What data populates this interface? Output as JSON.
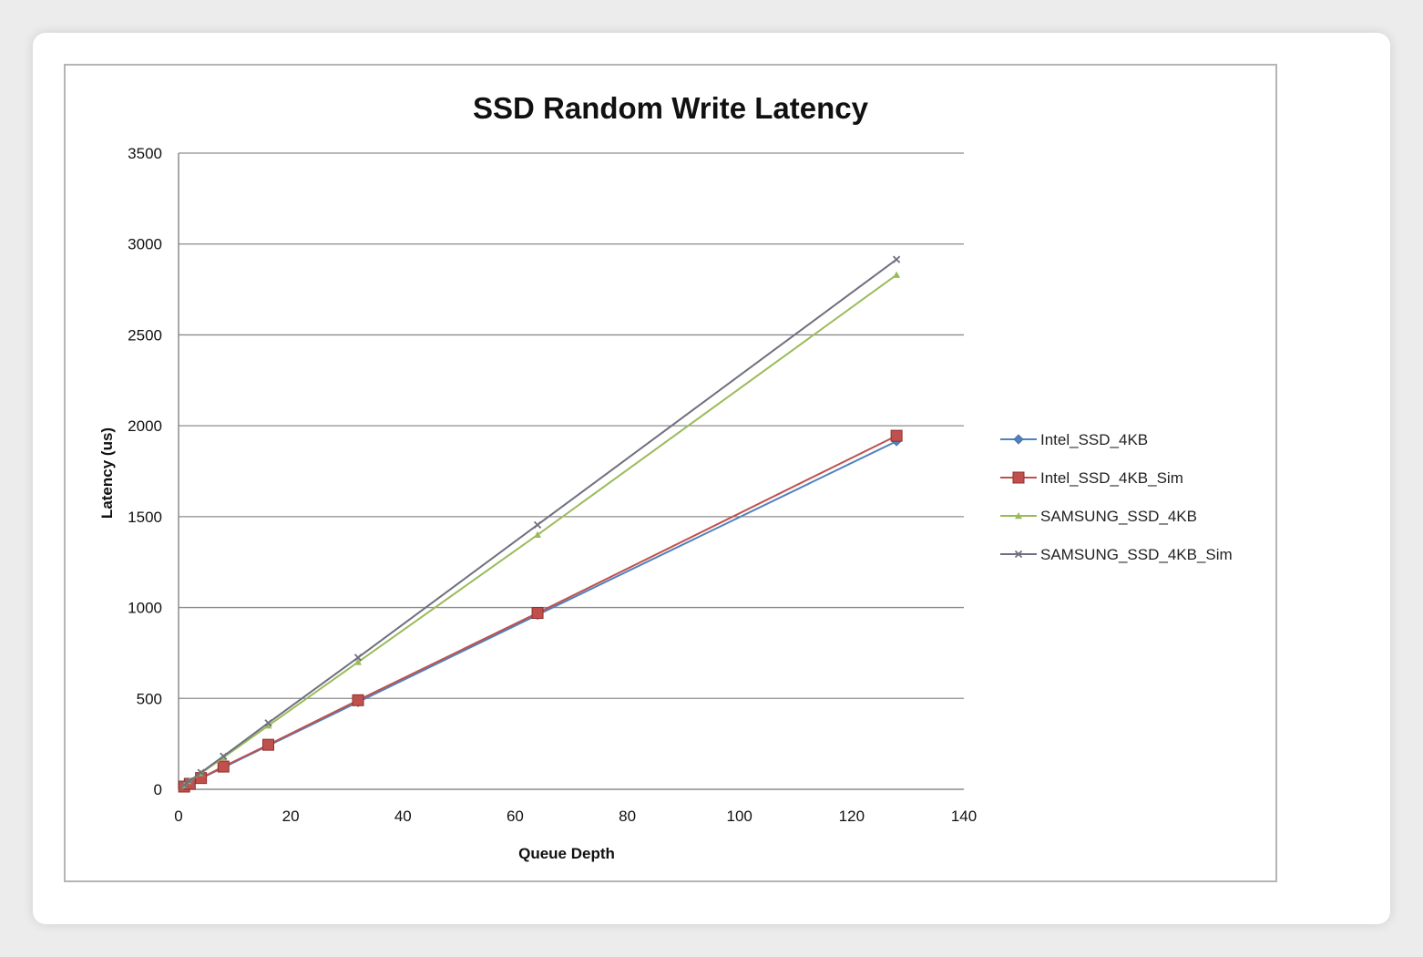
{
  "chart_data": {
    "type": "line",
    "title": "SSD Random Write Latency",
    "xlabel": "Queue Depth",
    "ylabel": "Latency (us)",
    "xlim": [
      0,
      140
    ],
    "ylim": [
      0,
      3500
    ],
    "xticks": [
      0,
      20,
      40,
      60,
      80,
      100,
      120,
      140
    ],
    "yticks": [
      0,
      500,
      1000,
      1500,
      2000,
      2500,
      3000,
      3500
    ],
    "grid": "horizontal",
    "legend_position": "right",
    "series": [
      {
        "name": "Intel_SSD_4KB",
        "color": "#4f81bd",
        "marker": "diamond",
        "x": [
          1,
          2,
          4,
          8,
          16,
          32,
          64,
          128
        ],
        "y": [
          15,
          30,
          60,
          120,
          240,
          480,
          960,
          1915
        ]
      },
      {
        "name": "Intel_SSD_4KB_Sim",
        "color": "#c0504d",
        "marker": "square",
        "x": [
          1,
          2,
          4,
          8,
          16,
          32,
          64,
          128
        ],
        "y": [
          15,
          30,
          62,
          125,
          245,
          490,
          970,
          1945
        ]
      },
      {
        "name": "SAMSUNG_SSD_4KB",
        "color": "#9bbb59",
        "marker": "triangle",
        "x": [
          1,
          2,
          4,
          8,
          16,
          32,
          64,
          128
        ],
        "y": [
          22,
          45,
          88,
          175,
          350,
          700,
          1400,
          2830
        ]
      },
      {
        "name": "SAMSUNG_SSD_4KB_Sim",
        "color": "#6f6f7f",
        "marker": "x",
        "x": [
          1,
          2,
          4,
          8,
          16,
          32,
          64,
          128
        ],
        "y": [
          23,
          46,
          92,
          182,
          365,
          725,
          1455,
          2915
        ]
      }
    ]
  }
}
